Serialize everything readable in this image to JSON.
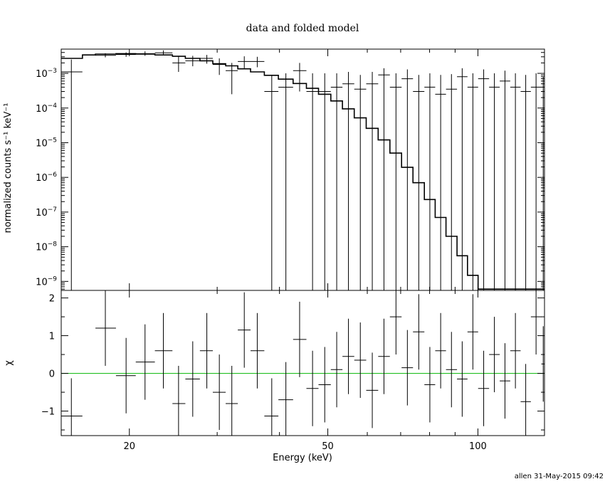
{
  "chart_data": {
    "type": "line",
    "title": "data and folded model",
    "footer": "allen 31-May-2015 09:42",
    "xlabel": "Energy (keV)",
    "xscale": "log",
    "xlim": [
      14.6,
      136
    ],
    "x_ticks": [
      {
        "value": 20,
        "label": "20"
      },
      {
        "value": 50,
        "label": "50"
      },
      {
        "value": 100,
        "label": "100"
      }
    ],
    "panels": [
      {
        "name": "top",
        "ylabel": "normalized counts s⁻¹ keV⁻¹",
        "yscale": "log",
        "ylim": [
          5.5e-10,
          0.005
        ],
        "y_ticks": [
          {
            "value": 0.001,
            "base": "10",
            "exp": "−3"
          },
          {
            "value": 0.0001,
            "base": "10",
            "exp": "−4"
          },
          {
            "value": 1e-05,
            "base": "10",
            "exp": "−5"
          },
          {
            "value": 1e-06,
            "base": "10",
            "exp": "−6"
          },
          {
            "value": 1e-07,
            "base": "10",
            "exp": "−7"
          },
          {
            "value": 1e-08,
            "base": "10",
            "exp": "−8"
          },
          {
            "value": 1e-09,
            "base": "10",
            "exp": "−9"
          }
        ],
        "series": [
          {
            "kind": "data_errorbars",
            "points": [
              {
                "x": 15.3,
                "y": 0.0011,
                "ylo": 5.5e-10,
                "yhi": 0.0025,
                "xlo": 14.6,
                "xhi": 16.1
              },
              {
                "x": 17.9,
                "y": 0.0033,
                "ylo": 0.0029,
                "yhi": 0.0038,
                "xlo": 17.1,
                "xhi": 18.8
              },
              {
                "x": 19.7,
                "y": 0.0035,
                "ylo": 0.003,
                "yhi": 0.004,
                "xlo": 18.8,
                "xhi": 20.6
              },
              {
                "x": 21.5,
                "y": 0.0037,
                "ylo": 0.0032,
                "yhi": 0.0043,
                "xlo": 20.6,
                "xhi": 22.5
              },
              {
                "x": 23.4,
                "y": 0.0039,
                "ylo": 0.0033,
                "yhi": 0.0046,
                "xlo": 22.5,
                "xhi": 24.4
              },
              {
                "x": 25.1,
                "y": 0.002,
                "ylo": 0.0011,
                "yhi": 0.0032,
                "xlo": 24.4,
                "xhi": 25.9
              },
              {
                "x": 26.8,
                "y": 0.0023,
                "ylo": 0.0016,
                "yhi": 0.0032,
                "xlo": 25.9,
                "xhi": 27.7
              },
              {
                "x": 28.6,
                "y": 0.0027,
                "ylo": 0.0019,
                "yhi": 0.0034,
                "xlo": 27.7,
                "xhi": 29.4
              },
              {
                "x": 30.3,
                "y": 0.0018,
                "ylo": 0.0009,
                "yhi": 0.0027,
                "xlo": 29.4,
                "xhi": 31.2
              },
              {
                "x": 32.1,
                "y": 0.0012,
                "ylo": 0.00025,
                "yhi": 0.002,
                "xlo": 31.2,
                "xhi": 33.0
              },
              {
                "x": 34.0,
                "y": 0.0022,
                "ylo": 0.0014,
                "yhi": 0.0031,
                "xlo": 33.0,
                "xhi": 35.0
              },
              {
                "x": 36.1,
                "y": 0.0022,
                "ylo": 0.0015,
                "yhi": 0.003,
                "xlo": 35.0,
                "xhi": 37.3
              },
              {
                "x": 38.6,
                "y": 0.0003,
                "ylo": 5.5e-10,
                "yhi": 0.0009,
                "xlo": 37.3,
                "xhi": 39.8
              },
              {
                "x": 41.2,
                "y": 0.0004,
                "ylo": 5.5e-10,
                "yhi": 0.001,
                "xlo": 39.8,
                "xhi": 42.6
              },
              {
                "x": 43.9,
                "y": 0.0012,
                "ylo": 0.0003,
                "yhi": 0.002,
                "xlo": 42.6,
                "xhi": 45.3
              },
              {
                "x": 46.6,
                "y": 0.0003,
                "ylo": 5.5e-10,
                "yhi": 0.001,
                "xlo": 45.3,
                "xhi": 47.9
              },
              {
                "x": 49.3,
                "y": 0.0003,
                "ylo": 5.5e-10,
                "yhi": 0.001,
                "xlo": 47.9,
                "xhi": 50.7
              },
              {
                "x": 52.1,
                "y": 0.0004,
                "ylo": 5.5e-10,
                "yhi": 0.001,
                "xlo": 50.7,
                "xhi": 53.5
              },
              {
                "x": 55.0,
                "y": 0.0005,
                "ylo": 5.5e-10,
                "yhi": 0.0011,
                "xlo": 53.5,
                "xhi": 56.5
              },
              {
                "x": 58.1,
                "y": 0.00035,
                "ylo": 5.5e-10,
                "yhi": 0.0009,
                "xlo": 56.5,
                "xhi": 59.7
              },
              {
                "x": 61.4,
                "y": 0.0005,
                "ylo": 5.5e-10,
                "yhi": 0.0011,
                "xlo": 59.7,
                "xhi": 63.1
              },
              {
                "x": 64.8,
                "y": 0.0009,
                "ylo": 5.5e-10,
                "yhi": 0.0014,
                "xlo": 63.1,
                "xhi": 66.6
              },
              {
                "x": 68.5,
                "y": 0.0004,
                "ylo": 5.5e-10,
                "yhi": 0.001,
                "xlo": 66.6,
                "xhi": 70.3
              },
              {
                "x": 72.2,
                "y": 0.0007,
                "ylo": 5.5e-10,
                "yhi": 0.0013,
                "xlo": 70.3,
                "xhi": 74.1
              },
              {
                "x": 76.1,
                "y": 0.0003,
                "ylo": 5.5e-10,
                "yhi": 0.0009,
                "xlo": 74.1,
                "xhi": 78.1
              },
              {
                "x": 80.1,
                "y": 0.0004,
                "ylo": 5.5e-10,
                "yhi": 0.001,
                "xlo": 78.1,
                "xhi": 82.1
              },
              {
                "x": 84.2,
                "y": 0.00025,
                "ylo": 5.5e-10,
                "yhi": 0.0009,
                "xlo": 82.1,
                "xhi": 86.3
              },
              {
                "x": 88.5,
                "y": 0.00035,
                "ylo": 5.5e-10,
                "yhi": 0.00095,
                "xlo": 86.3,
                "xhi": 90.8
              },
              {
                "x": 93.0,
                "y": 0.0008,
                "ylo": 5.5e-10,
                "yhi": 0.0014,
                "xlo": 90.8,
                "xhi": 95.3
              },
              {
                "x": 97.7,
                "y": 0.0004,
                "ylo": 5.5e-10,
                "yhi": 0.001,
                "xlo": 95.3,
                "xhi": 100.1
              },
              {
                "x": 102.7,
                "y": 0.0007,
                "ylo": 5.5e-10,
                "yhi": 0.0013,
                "xlo": 100.1,
                "xhi": 105.3
              },
              {
                "x": 107.9,
                "y": 0.0004,
                "ylo": 5.5e-10,
                "yhi": 0.001,
                "xlo": 105.3,
                "xhi": 110.6
              },
              {
                "x": 113.3,
                "y": 0.0006,
                "ylo": 5.5e-10,
                "yhi": 0.0012,
                "xlo": 110.6,
                "xhi": 116.1
              },
              {
                "x": 118.9,
                "y": 0.0004,
                "ylo": 5.5e-10,
                "yhi": 0.001,
                "xlo": 116.1,
                "xhi": 121.8
              },
              {
                "x": 124.7,
                "y": 0.0003,
                "ylo": 5.5e-10,
                "yhi": 0.0009,
                "xlo": 121.8,
                "xhi": 127.7
              },
              {
                "x": 130.8,
                "y": 0.0004,
                "ylo": 5.5e-10,
                "yhi": 0.001,
                "xlo": 127.7,
                "xhi": 134.0
              },
              {
                "x": 135.2,
                "y": 0.0003,
                "ylo": 5.5e-10,
                "yhi": 0.0008,
                "xlo": 134.0,
                "xhi": 136.0
              }
            ]
          },
          {
            "kind": "model_step",
            "edges": [
              14.6,
              16.1,
              17.1,
              18.8,
              20.6,
              22.5,
              24.4,
              25.9,
              27.7,
              29.4,
              31.2,
              33.0,
              35.0,
              37.3,
              39.8,
              42.6,
              45.3,
              47.9,
              50.7,
              53.5,
              56.5,
              59.7,
              63.1,
              66.6,
              70.3,
              74.1,
              78.1,
              82.1,
              86.3,
              90.8,
              95.3,
              100.1,
              105.3,
              110.6,
              116.1,
              121.8,
              127.7,
              134.0,
              136.0
            ],
            "values": [
              0.0027,
              0.0034,
              0.0036,
              0.0037,
              0.0036,
              0.0034,
              0.0031,
              0.0027,
              0.0023,
              0.0019,
              0.00165,
              0.00135,
              0.0011,
              0.00088,
              0.00068,
              0.00051,
              0.00037,
              0.00025,
              0.00016,
              9.5e-05,
              5.2e-05,
              2.6e-05,
              1.2e-05,
              5e-06,
              1.95e-06,
              7e-07,
              2.3e-07,
              7e-08,
              2e-08,
              5.5e-09,
              1.5e-09,
              6e-10,
              6e-10,
              6e-10,
              6e-10,
              6e-10,
              6e-10,
              6e-10
            ]
          }
        ]
      },
      {
        "name": "bottom",
        "ylabel": "χ",
        "yscale": "linear",
        "ylim": [
          -1.65,
          2.2
        ],
        "y_ticks": [
          {
            "value": 2,
            "label": "2"
          },
          {
            "value": 1,
            "label": "1"
          },
          {
            "value": 0,
            "label": "0"
          },
          {
            "value": -1,
            "label": "−1"
          }
        ],
        "reference_line": {
          "y": 0,
          "color": "#22c022"
        },
        "series": [
          {
            "kind": "residual_errorbars",
            "points": [
              {
                "x": 15.3,
                "y": -1.13,
                "xlo": 14.6,
                "xhi": 16.1
              },
              {
                "x": 17.9,
                "y": 1.2,
                "xlo": 17.1,
                "xhi": 18.8
              },
              {
                "x": 19.7,
                "y": -0.06,
                "xlo": 18.8,
                "xhi": 20.6
              },
              {
                "x": 21.5,
                "y": 0.3,
                "xlo": 20.6,
                "xhi": 22.5
              },
              {
                "x": 23.4,
                "y": 0.6,
                "xlo": 22.5,
                "xhi": 24.4
              },
              {
                "x": 25.1,
                "y": -0.8,
                "xlo": 24.4,
                "xhi": 25.9
              },
              {
                "x": 26.8,
                "y": -0.15,
                "xlo": 25.9,
                "xhi": 27.7
              },
              {
                "x": 28.6,
                "y": 0.6,
                "xlo": 27.7,
                "xhi": 29.4
              },
              {
                "x": 30.3,
                "y": -0.5,
                "xlo": 29.4,
                "xhi": 31.2
              },
              {
                "x": 32.1,
                "y": -0.8,
                "xlo": 31.2,
                "xhi": 33.0
              },
              {
                "x": 34.0,
                "y": 1.15,
                "xlo": 33.0,
                "xhi": 35.0
              },
              {
                "x": 36.1,
                "y": 0.6,
                "xlo": 35.0,
                "xhi": 37.3
              },
              {
                "x": 38.6,
                "y": -1.13,
                "xlo": 37.3,
                "xhi": 39.8
              },
              {
                "x": 41.2,
                "y": -0.7,
                "xlo": 39.8,
                "xhi": 42.6
              },
              {
                "x": 43.9,
                "y": 0.9,
                "xlo": 42.6,
                "xhi": 45.3
              },
              {
                "x": 46.6,
                "y": -0.4,
                "xlo": 45.3,
                "xhi": 47.9
              },
              {
                "x": 49.3,
                "y": -0.3,
                "xlo": 47.9,
                "xhi": 50.7
              },
              {
                "x": 52.1,
                "y": 0.1,
                "xlo": 50.7,
                "xhi": 53.5
              },
              {
                "x": 55.0,
                "y": 0.45,
                "xlo": 53.5,
                "xhi": 56.5
              },
              {
                "x": 58.1,
                "y": 0.35,
                "xlo": 56.5,
                "xhi": 59.7
              },
              {
                "x": 61.4,
                "y": -0.45,
                "xlo": 59.7,
                "xhi": 63.1
              },
              {
                "x": 64.8,
                "y": 0.45,
                "xlo": 63.1,
                "xhi": 66.6
              },
              {
                "x": 68.5,
                "y": 1.5,
                "xlo": 66.6,
                "xhi": 70.3
              },
              {
                "x": 72.2,
                "y": 0.15,
                "xlo": 70.3,
                "xhi": 74.1
              },
              {
                "x": 76.1,
                "y": 1.1,
                "xlo": 74.1,
                "xhi": 78.1
              },
              {
                "x": 80.1,
                "y": -0.3,
                "xlo": 78.1,
                "xhi": 82.1
              },
              {
                "x": 84.2,
                "y": 0.6,
                "xlo": 82.1,
                "xhi": 86.3
              },
              {
                "x": 88.5,
                "y": 0.1,
                "xlo": 86.3,
                "xhi": 90.8
              },
              {
                "x": 93.0,
                "y": -0.15,
                "xlo": 90.8,
                "xhi": 95.3
              },
              {
                "x": 97.7,
                "y": 1.1,
                "xlo": 95.3,
                "xhi": 100.1
              },
              {
                "x": 102.7,
                "y": -0.4,
                "xlo": 100.1,
                "xhi": 105.3
              },
              {
                "x": 107.9,
                "y": 0.5,
                "xlo": 105.3,
                "xhi": 110.6
              },
              {
                "x": 113.3,
                "y": -0.2,
                "xlo": 110.6,
                "xhi": 116.1
              },
              {
                "x": 118.9,
                "y": 0.6,
                "xlo": 116.1,
                "xhi": 121.8
              },
              {
                "x": 124.7,
                "y": -0.75,
                "xlo": 121.8,
                "xhi": 127.7
              },
              {
                "x": 130.8,
                "y": 1.5,
                "xlo": 127.7,
                "xhi": 134.0
              },
              {
                "x": 135.2,
                "y": 0.25,
                "xlo": 134.0,
                "xhi": 136.0
              }
            ]
          }
        ]
      }
    ]
  }
}
